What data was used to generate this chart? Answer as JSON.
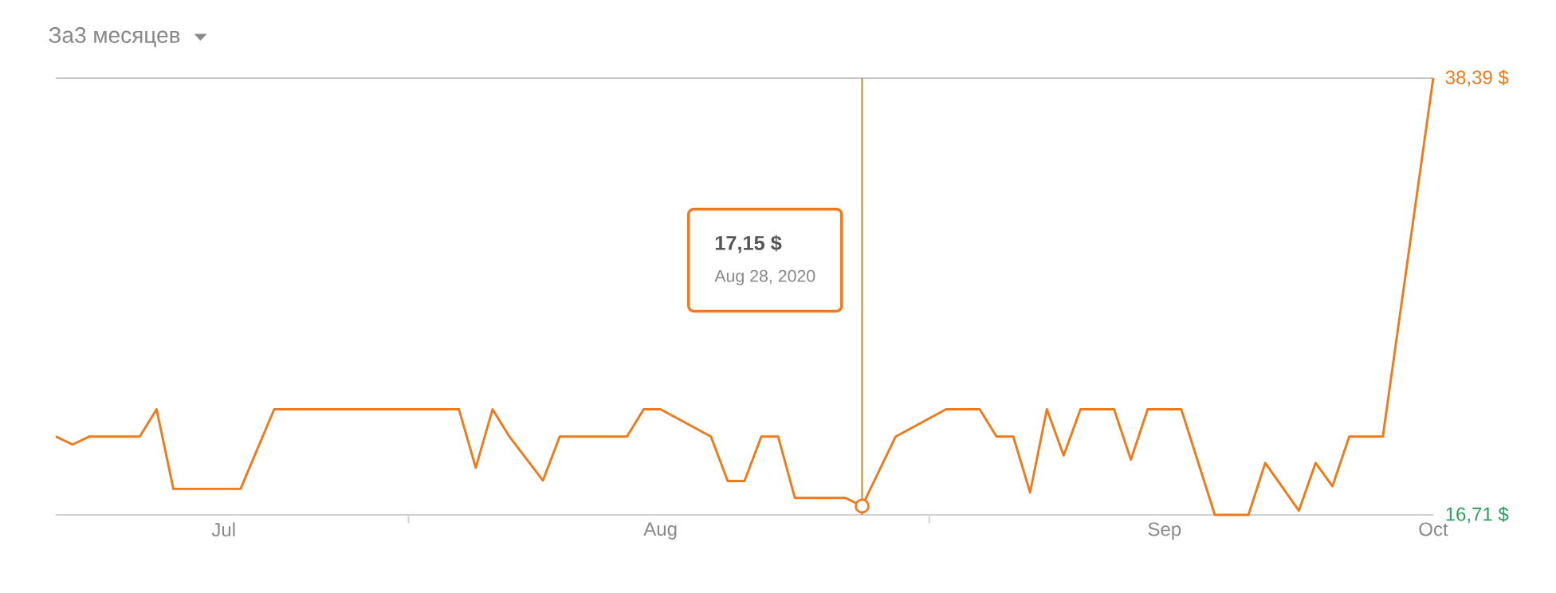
{
  "chart_data": {
    "type": "line",
    "title": "За3 месяцев",
    "x": [
      "2020-07-11",
      "2020-07-12",
      "2020-07-13",
      "2020-07-16",
      "2020-07-17",
      "2020-07-18",
      "2020-07-22",
      "2020-07-24",
      "2020-08-04",
      "2020-08-05",
      "2020-08-06",
      "2020-08-07",
      "2020-08-09",
      "2020-08-10",
      "2020-08-14",
      "2020-08-15",
      "2020-08-16",
      "2020-08-19",
      "2020-08-20",
      "2020-08-21",
      "2020-08-22",
      "2020-08-23",
      "2020-08-24",
      "2020-08-27",
      "2020-08-28",
      "2020-08-30",
      "2020-09-02",
      "2020-09-04",
      "2020-09-05",
      "2020-09-06",
      "2020-09-07",
      "2020-09-08",
      "2020-09-09",
      "2020-09-10",
      "2020-09-12",
      "2020-09-13",
      "2020-09-14",
      "2020-09-16",
      "2020-09-18",
      "2020-09-20",
      "2020-09-21",
      "2020-09-23",
      "2020-09-24",
      "2020-09-25",
      "2020-09-26",
      "2020-09-28",
      "2020-10-01"
    ],
    "series": [
      {
        "color": "#ed7a1c",
        "values": [
          20.6,
          20.2,
          20.6,
          20.6,
          21.95,
          18.0,
          18.0,
          21.95,
          21.95,
          19.05,
          21.95,
          20.6,
          18.42,
          20.6,
          20.6,
          21.95,
          21.95,
          20.6,
          18.39,
          18.39,
          20.6,
          20.6,
          17.55,
          17.55,
          17.15,
          20.6,
          21.95,
          21.95,
          20.6,
          20.6,
          17.82,
          21.95,
          19.66,
          21.95,
          21.95,
          19.45,
          21.95,
          21.95,
          16.71,
          16.71,
          19.29,
          16.92,
          19.29,
          18.13,
          20.6,
          20.6,
          38.39
        ]
      }
    ],
    "xlim": [
      "2020-07-11",
      "2020-10-01"
    ],
    "xticks": [
      {
        "value": "2020-07-21",
        "label": "Jul"
      },
      {
        "value": "2020-08-01",
        "label": null
      },
      {
        "value": "2020-08-16",
        "label": "Aug"
      },
      {
        "value": "2020-09-01",
        "label": null
      },
      {
        "value": "2020-09-15",
        "label": "Sep"
      },
      {
        "value": "2020-10-01",
        "label": "Oct"
      }
    ],
    "ylim": [
      16.71,
      38.39
    ],
    "yticks": [
      {
        "value": 16.71,
        "label": "16,71 $"
      },
      {
        "value": 38.39,
        "label": "38,39 $"
      }
    ],
    "grid": "y",
    "ref_lines": [
      {
        "axis": "x",
        "value": "2020-08-28",
        "color": "#c98a1e"
      }
    ],
    "annotations": [
      "17,15 $",
      "Aug 28, 2020"
    ]
  }
}
